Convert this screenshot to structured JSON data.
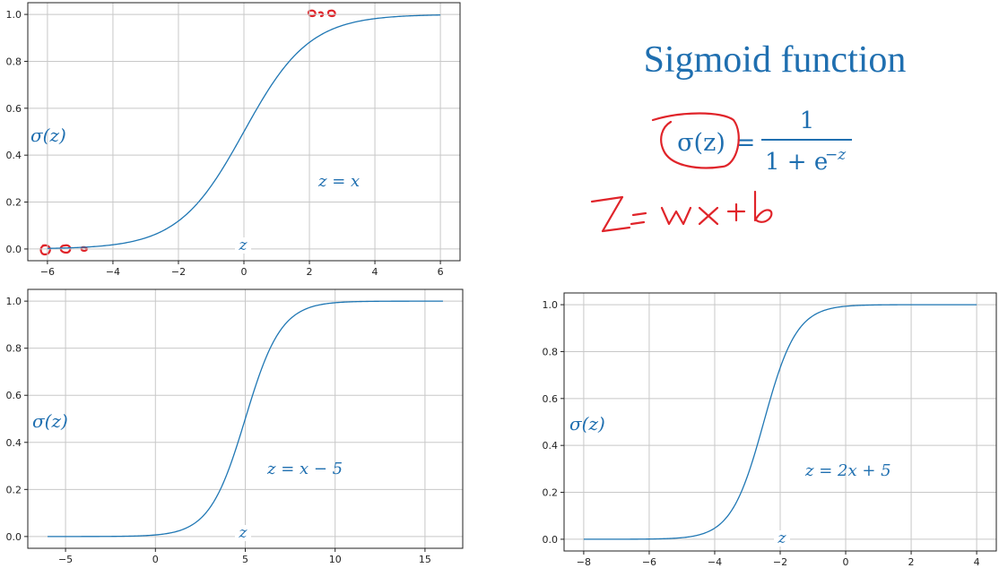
{
  "title": "Sigmoid function",
  "formula": {
    "lhs": "σ(z)",
    "equals": "=",
    "numerator": "1",
    "denominator_base": "1 + e",
    "denominator_exp": "−z"
  },
  "handwritten_note": "z = wx + b",
  "colors": {
    "curve": "#1f77b4",
    "text": "#1f6fb0",
    "ink": "#e0242a",
    "grid": "#c8c8c8"
  },
  "chart_data": [
    {
      "type": "line",
      "function": "sigmoid",
      "z_label": "z",
      "ylabel": "σ(z)",
      "equation": "z = x",
      "slope": 1,
      "intercept": 0,
      "xlim": [
        -6.6,
        6.6
      ],
      "ylim": [
        -0.05,
        1.05
      ],
      "x_range": [
        -6,
        6
      ],
      "xticks": [
        -6,
        -4,
        -2,
        0,
        2,
        4,
        6
      ],
      "xtick_labels": [
        "−6",
        "−4",
        "−2",
        "0",
        "2",
        "4",
        "6"
      ],
      "yticks": [
        0.0,
        0.2,
        0.4,
        0.6,
        0.8,
        1.0
      ],
      "ytick_labels": [
        "0.0",
        "0.2",
        "0.4",
        "0.6",
        "0.8",
        "1.0"
      ],
      "grid": true
    },
    {
      "type": "line",
      "function": "sigmoid",
      "z_label": "z",
      "ylabel": "σ(z)",
      "equation": "z = x − 5",
      "slope": 1,
      "intercept": -5,
      "xlim": [
        -7.1,
        17.1
      ],
      "ylim": [
        -0.05,
        1.05
      ],
      "x_range": [
        -6,
        16
      ],
      "xticks": [
        -5,
        0,
        5,
        10,
        15
      ],
      "xtick_labels": [
        "−5",
        "0",
        "5",
        "10",
        "15"
      ],
      "yticks": [
        0.0,
        0.2,
        0.4,
        0.6,
        0.8,
        1.0
      ],
      "ytick_labels": [
        "0.0",
        "0.2",
        "0.4",
        "0.6",
        "0.8",
        "1.0"
      ],
      "grid": true
    },
    {
      "type": "line",
      "function": "sigmoid",
      "z_label": "z",
      "ylabel": "σ(z)",
      "equation": "z = 2x + 5",
      "slope": 2,
      "intercept": 5,
      "xlim": [
        -8.6,
        4.6
      ],
      "ylim": [
        -0.05,
        1.05
      ],
      "x_range": [
        -8,
        4
      ],
      "xticks": [
        -8,
        -6,
        -4,
        -2,
        0,
        2,
        4
      ],
      "xtick_labels": [
        "−8",
        "−6",
        "−4",
        "−2",
        "0",
        "2",
        "4"
      ],
      "yticks": [
        0.0,
        0.2,
        0.4,
        0.6,
        0.8,
        1.0
      ],
      "ytick_labels": [
        "0.0",
        "0.2",
        "0.4",
        "0.6",
        "0.8",
        "1.0"
      ],
      "grid": true
    }
  ]
}
